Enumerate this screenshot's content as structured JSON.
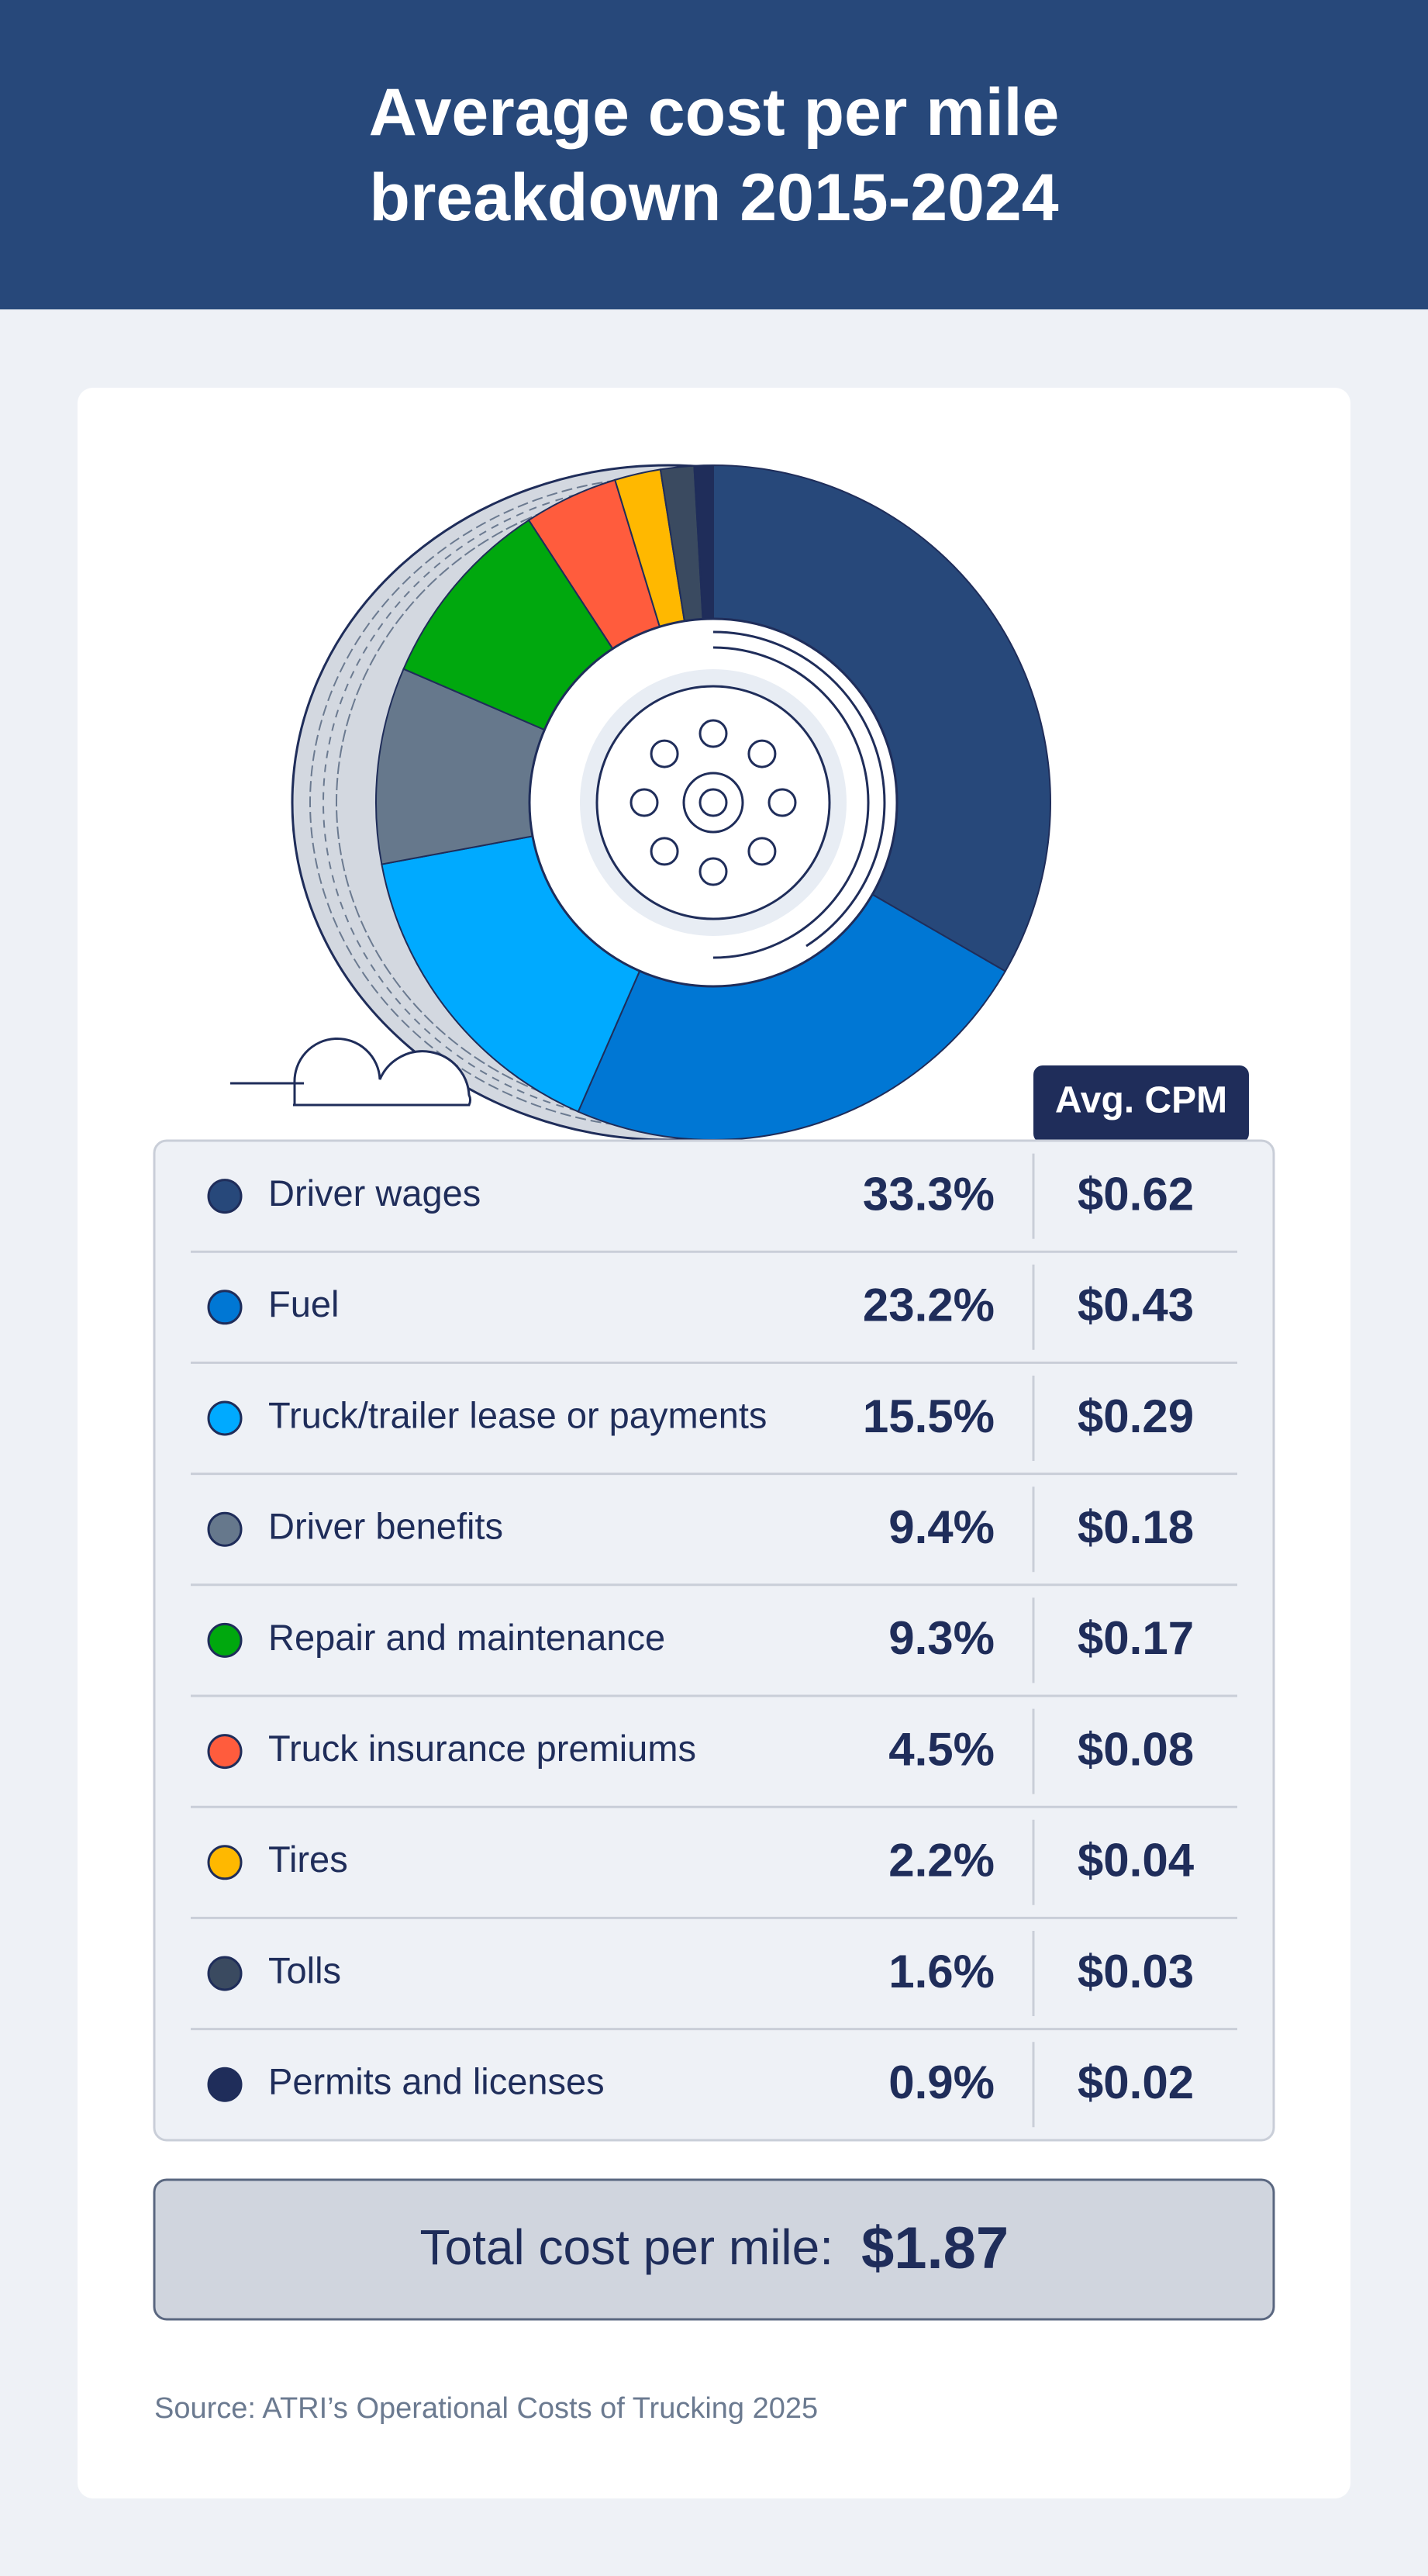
{
  "chart_data": {
    "type": "pie",
    "title": "Average cost per mile breakdown 2015-2024",
    "categories": [
      "Driver wages",
      "Fuel",
      "Truck/trailer lease or payments",
      "Driver benefits",
      "Repair and maintenance",
      "Truck insurance premiums",
      "Tires",
      "Tolls",
      "Permits and licenses"
    ],
    "values": [
      33.3,
      23.2,
      15.5,
      9.4,
      9.3,
      4.5,
      2.2,
      1.6,
      0.9
    ],
    "value_labels": [
      "33.3%",
      "23.2%",
      "15.5%",
      "9.4%",
      "9.3%",
      "4.5%",
      "2.2%",
      "1.6%",
      "0.9%"
    ],
    "colors": [
      "#27487a",
      "#0077d4",
      "#00aaff",
      "#66788c",
      "#00a80e",
      "#ff5c3d",
      "#ffb800",
      "#3a4a60",
      "#1f2d5a"
    ],
    "cpm": {
      "header": "Avg. CPM",
      "values": [
        0.62,
        0.43,
        0.29,
        0.18,
        0.17,
        0.08,
        0.04,
        0.03,
        0.02
      ],
      "value_labels": [
        "$0.62",
        "$0.43",
        "$0.29",
        "$0.18",
        "$0.17",
        "$0.08",
        "$0.04",
        "$0.03",
        "$0.02"
      ]
    },
    "total": {
      "label": "Total cost per mile:",
      "value": 1.87,
      "value_label": "$1.87"
    },
    "source": "Source: ATRI’s Operational Costs of Trucking 2025"
  }
}
